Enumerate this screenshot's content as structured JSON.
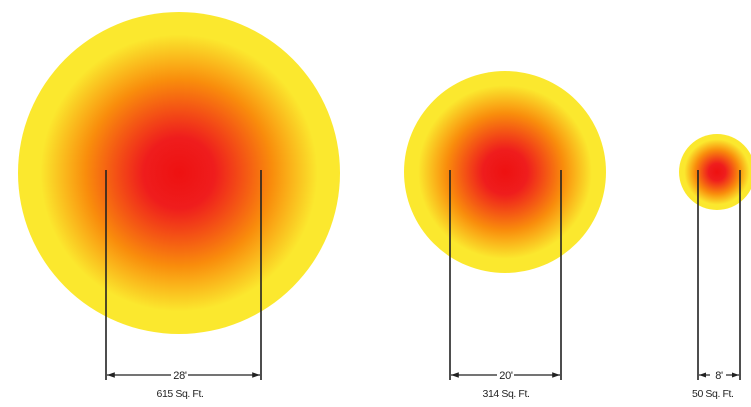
{
  "circles": [
    {
      "diameter": "28'",
      "area": "615 Sq. Ft."
    },
    {
      "diameter": "20'",
      "area": "314 Sq. Ft."
    },
    {
      "diameter": "8'",
      "area": "50 Sq. Ft."
    }
  ],
  "colors": {
    "center": "#ee1111",
    "mid": "#f98d0c",
    "edge": "#fbe82e",
    "line": "#222222",
    "background": "#ffffff"
  }
}
